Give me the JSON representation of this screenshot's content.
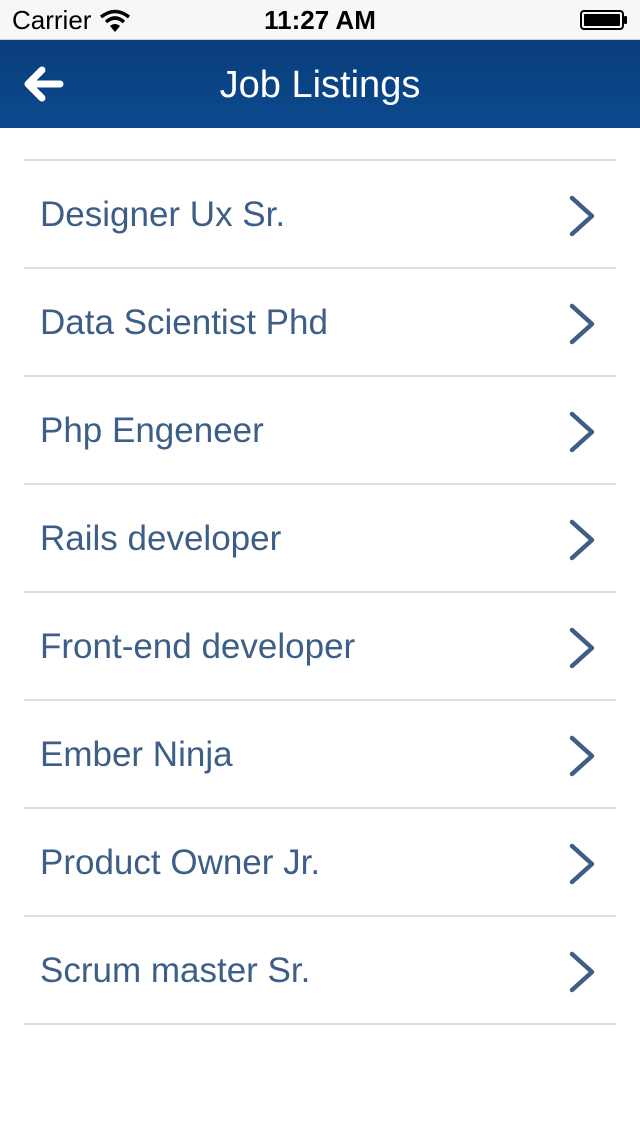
{
  "status_bar": {
    "carrier": "Carrier",
    "time": "11:27 AM",
    "wifi_icon": "wifi-icon",
    "battery_icon": "battery-icon"
  },
  "nav_bar": {
    "title": "Job Listings",
    "back_icon": "back-arrow-icon",
    "background": "#0b4585"
  },
  "jobs": [
    {
      "label": "Designer Ux Sr."
    },
    {
      "label": "Data Scientist Phd"
    },
    {
      "label": "Php Engeneer"
    },
    {
      "label": "Rails developer"
    },
    {
      "label": "Front-end developer"
    },
    {
      "label": "Ember Ninja"
    },
    {
      "label": "Product Owner Jr."
    },
    {
      "label": "Scrum master Sr."
    }
  ],
  "colors": {
    "item_text": "#3d5e87",
    "divider": "#dedede"
  }
}
